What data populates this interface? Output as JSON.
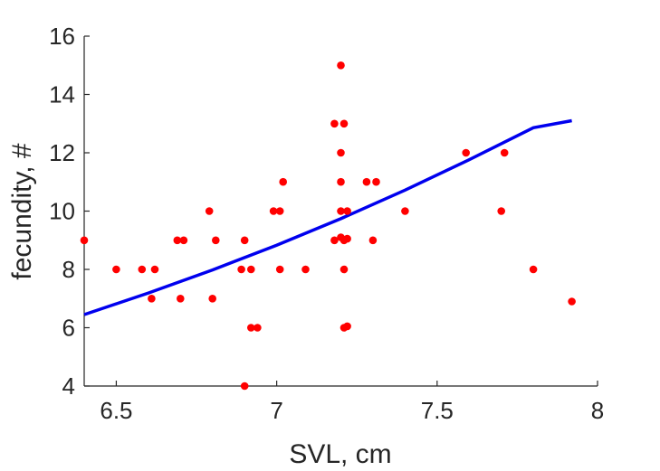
{
  "chart_data": {
    "type": "scatter",
    "title": "",
    "xlabel": "SVL, cm",
    "ylabel": "fecundity, #",
    "xlim": [
      6.4,
      8
    ],
    "ylim": [
      4,
      16
    ],
    "x_ticks": [
      "6.5",
      "7",
      "7.5",
      "8"
    ],
    "y_ticks": [
      "4",
      "6",
      "8",
      "10",
      "12",
      "14",
      "16"
    ],
    "grid": false,
    "series": [
      {
        "type": "scatter",
        "color": "#ff0000",
        "points": [
          [
            6.4,
            9
          ],
          [
            6.5,
            8
          ],
          [
            6.58,
            8
          ],
          [
            6.62,
            8
          ],
          [
            6.61,
            7
          ],
          [
            6.69,
            9
          ],
          [
            6.71,
            9
          ],
          [
            6.7,
            7
          ],
          [
            6.79,
            10
          ],
          [
            6.81,
            9
          ],
          [
            6.8,
            7
          ],
          [
            6.89,
            8
          ],
          [
            6.9,
            9
          ],
          [
            6.92,
            8
          ],
          [
            6.92,
            6
          ],
          [
            6.94,
            6
          ],
          [
            6.9,
            4
          ],
          [
            6.99,
            10
          ],
          [
            7.01,
            10
          ],
          [
            7.02,
            11
          ],
          [
            7.01,
            8
          ],
          [
            7.09,
            8
          ],
          [
            7.18,
            13
          ],
          [
            7.2,
            15
          ],
          [
            7.2,
            12
          ],
          [
            7.2,
            11
          ],
          [
            7.21,
            13
          ],
          [
            7.2,
            10
          ],
          [
            7.22,
            10
          ],
          [
            7.18,
            9
          ],
          [
            7.2,
            9.1
          ],
          [
            7.21,
            9
          ],
          [
            7.22,
            9.05
          ],
          [
            7.21,
            8
          ],
          [
            7.21,
            6
          ],
          [
            7.22,
            6.05
          ],
          [
            7.28,
            11
          ],
          [
            7.31,
            11
          ],
          [
            7.3,
            9
          ],
          [
            7.4,
            10
          ],
          [
            7.59,
            12
          ],
          [
            7.7,
            10
          ],
          [
            7.71,
            12
          ],
          [
            7.8,
            8
          ],
          [
            7.92,
            6.9
          ]
        ]
      },
      {
        "type": "line",
        "color": "#0000ee",
        "x": [
          6.4,
          6.6,
          6.8,
          7.0,
          7.2,
          7.4,
          7.6,
          7.8,
          7.92
        ],
        "y": [
          6.45,
          7.19,
          7.98,
          8.83,
          9.74,
          10.72,
          11.76,
          12.86,
          13.1
        ]
      }
    ]
  }
}
